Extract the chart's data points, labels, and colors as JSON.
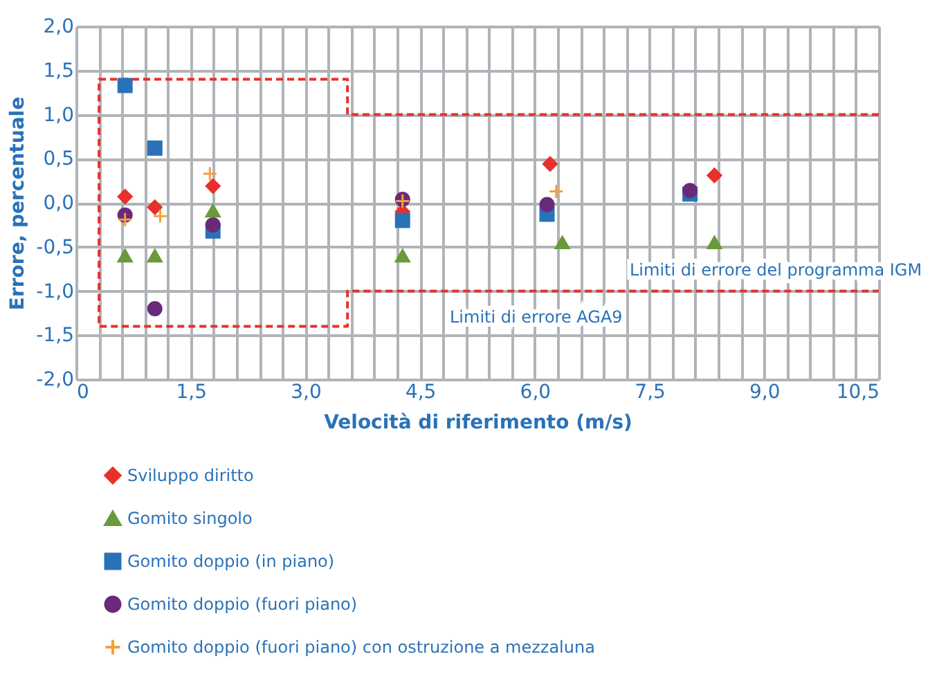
{
  "chart_data": {
    "type": "scatter",
    "xlabel": "Velocità di riferimento (m/s)",
    "ylabel": "Errore, percentuale",
    "xlim": [
      0,
      10.5
    ],
    "ylim": [
      -2.0,
      2.0
    ],
    "xticks": [
      {
        "value": 0,
        "label": "0"
      },
      {
        "value": 0.3,
        "label": null
      },
      {
        "value": 0.6,
        "label": null
      },
      {
        "value": 0.9,
        "label": null
      },
      {
        "value": 1.2,
        "label": null
      },
      {
        "value": 1.5,
        "label": "1,5"
      },
      {
        "value": 1.8,
        "label": null
      },
      {
        "value": 2.1,
        "label": null
      },
      {
        "value": 2.4,
        "label": null
      },
      {
        "value": 2.7,
        "label": null
      },
      {
        "value": 3.0,
        "label": "3,0"
      },
      {
        "value": 3.3,
        "label": null
      },
      {
        "value": 3.6,
        "label": null
      },
      {
        "value": 3.9,
        "label": null
      },
      {
        "value": 4.2,
        "label": null
      },
      {
        "value": 4.5,
        "label": "4,5"
      },
      {
        "value": 4.8,
        "label": null
      },
      {
        "value": 5.1,
        "label": null
      },
      {
        "value": 5.4,
        "label": null
      },
      {
        "value": 5.7,
        "label": null
      },
      {
        "value": 6.0,
        "label": "6,0"
      },
      {
        "value": 6.3,
        "label": null
      },
      {
        "value": 6.6,
        "label": null
      },
      {
        "value": 6.9,
        "label": null
      },
      {
        "value": 7.2,
        "label": null
      },
      {
        "value": 7.5,
        "label": "7,5"
      },
      {
        "value": 7.8,
        "label": null
      },
      {
        "value": 8.1,
        "label": null
      },
      {
        "value": 8.4,
        "label": null
      },
      {
        "value": 8.7,
        "label": null
      },
      {
        "value": 9.0,
        "label": "9,0"
      },
      {
        "value": 9.3,
        "label": null
      },
      {
        "value": 9.6,
        "label": null
      },
      {
        "value": 9.9,
        "label": null
      },
      {
        "value": 10.2,
        "label": null
      },
      {
        "value": 10.5,
        "label": "10,5"
      }
    ],
    "yticks": [
      {
        "value": -2.0,
        "label": "-2,0"
      },
      {
        "value": -1.5,
        "label": "-1,5"
      },
      {
        "value": -1.0,
        "label": "-1,0"
      },
      {
        "value": -0.5,
        "label": "-0,5"
      },
      {
        "value": 0,
        "label": "0,0"
      },
      {
        "value": 0.5,
        "label": "0,5"
      },
      {
        "value": 1.0,
        "label": "1,0"
      },
      {
        "value": 1.5,
        "label": "1,5"
      },
      {
        "value": 2.0,
        "label": "2,0"
      }
    ],
    "grid": true,
    "legend": "bottom",
    "series": [
      {
        "name": "Sviluppo diritto",
        "color": "#e8302a",
        "marker": "diamond",
        "x": [
          0.64,
          1.03,
          1.79,
          4.27,
          6.2,
          8.35
        ],
        "values": [
          0.07,
          -0.05,
          0.19,
          -0.1,
          0.44,
          0.31
        ]
      },
      {
        "name": "Gomito singolo",
        "color": "#6a9a3a",
        "marker": "triangle",
        "x": [
          0.64,
          1.03,
          1.79,
          4.27,
          6.36,
          8.35
        ],
        "values": [
          -0.6,
          -0.6,
          -0.09,
          -0.6,
          -0.45,
          -0.45
        ]
      },
      {
        "name": "Gomito doppio (in piano)",
        "color": "#2a72b8",
        "marker": "square",
        "x": [
          0.64,
          1.03,
          1.79,
          4.27,
          6.16,
          8.03
        ],
        "values": [
          1.33,
          0.62,
          -0.32,
          -0.2,
          -0.13,
          0.1
        ]
      },
      {
        "name": "Gomito doppio (fuori piano)",
        "color": "#6a2a7a",
        "marker": "circle",
        "x": [
          0.64,
          1.03,
          1.79,
          4.27,
          6.16,
          8.03
        ],
        "values": [
          -0.14,
          -1.2,
          -0.25,
          0.04,
          -0.02,
          0.14
        ]
      },
      {
        "name": "Gomito doppio (fuori piano) con ostruzione a mezzaluna",
        "color": "#f5a03a",
        "marker": "cross",
        "x": [
          0.64,
          1.1,
          1.75,
          4.27,
          6.28
        ],
        "values": [
          -0.19,
          -0.15,
          0.33,
          0.02,
          0.13
        ]
      },
      {
        "type": "line",
        "color": "#e8302a",
        "line_style": "dashed",
        "marker": "none",
        "x": [
          10.5,
          3.55,
          3.55,
          0.3,
          0.3,
          3.55,
          3.55,
          10.5
        ],
        "values": [
          1.0,
          1.0,
          1.4,
          1.4,
          -1.4,
          -1.4,
          -1.0,
          -1.0
        ]
      }
    ],
    "annotations": [
      "Limiti di errore del programma IGM",
      "Limiti di errore AGA9"
    ]
  }
}
